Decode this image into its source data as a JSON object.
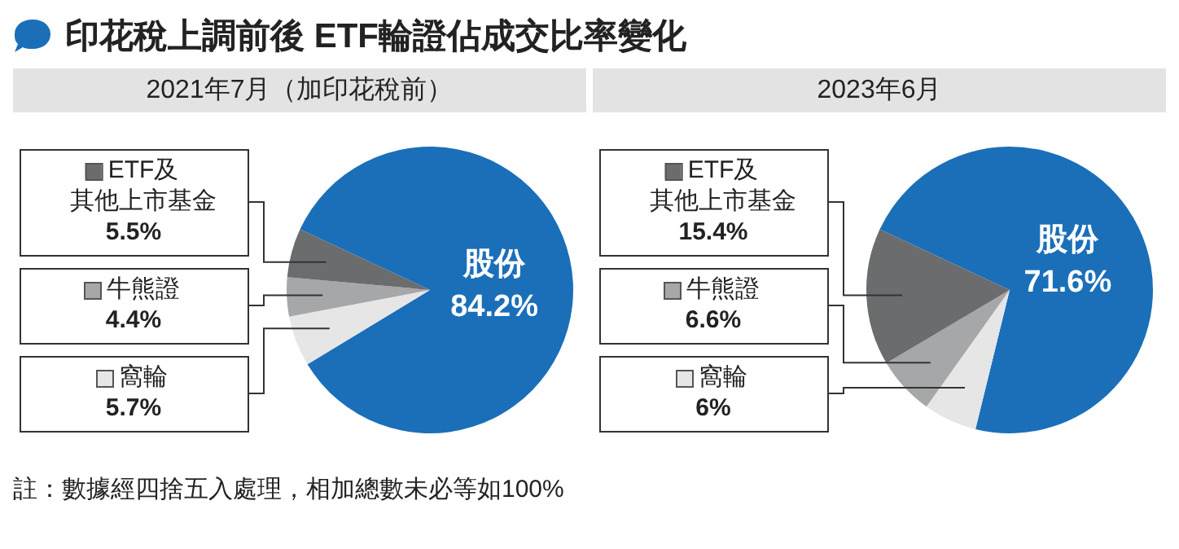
{
  "chart_data": [
    {
      "type": "pie",
      "title": "印花稅上調前後 ETF輪證佔成交比率變化",
      "subtitle": "2021年7月（加印花稅前）",
      "categories": [
        "股份",
        "窩輪",
        "牛熊證",
        "ETF及其他上市基金"
      ],
      "values": [
        84.2,
        5.7,
        4.4,
        5.5
      ],
      "colors": [
        "#1b6fb9",
        "#e6e6e6",
        "#a6a7a9",
        "#6b6c6e"
      ],
      "value_labels": [
        "84.2%",
        "5.7%",
        "4.4%",
        "5.5%"
      ],
      "legend": "left"
    },
    {
      "type": "pie",
      "subtitle": "2023年6月",
      "categories": [
        "股份",
        "窩輪",
        "牛熊證",
        "ETF及其他上市基金"
      ],
      "values": [
        71.6,
        6,
        6.6,
        15.4
      ],
      "colors": [
        "#1b6fb9",
        "#e6e6e6",
        "#a6a7a9",
        "#6b6c6e"
      ],
      "value_labels": [
        "71.6%",
        "6%",
        "6.6%",
        "15.4%"
      ],
      "legend": "left",
      "annotations": [
        "註：數據經四捨五入處理，相加總數未必等如100%"
      ]
    }
  ]
}
